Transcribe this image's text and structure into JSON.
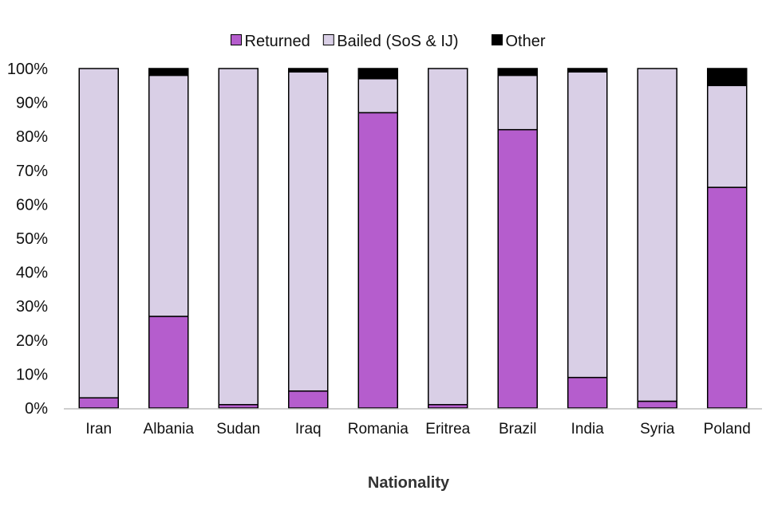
{
  "chart_data": {
    "type": "bar",
    "stacked": true,
    "percent": true,
    "title": "",
    "xlabel": "Nationality",
    "ylabel": "",
    "ylim": [
      0,
      100
    ],
    "yticks": [
      "0%",
      "10%",
      "20%",
      "30%",
      "40%",
      "50%",
      "60%",
      "70%",
      "80%",
      "90%",
      "100%"
    ],
    "categories": [
      "Iran",
      "Albania",
      "Sudan",
      "Iraq",
      "Romania",
      "Eritrea",
      "Brazil",
      "India",
      "Syria",
      "Poland"
    ],
    "series": [
      {
        "name": "Returned",
        "color": "#b55dcd",
        "values": [
          3,
          27,
          1,
          5,
          87,
          1,
          82,
          9,
          2,
          65
        ]
      },
      {
        "name": "Bailed (SoS & IJ)",
        "color": "#d9cfe6",
        "values": [
          97,
          71,
          99,
          94,
          10,
          99,
          16,
          90,
          98,
          30
        ]
      },
      {
        "name": "Other",
        "color": "#000000",
        "values": [
          0,
          2,
          0,
          1,
          3,
          0,
          2,
          1,
          0,
          5
        ]
      }
    ],
    "legend_position": "top-center",
    "grid": false
  }
}
